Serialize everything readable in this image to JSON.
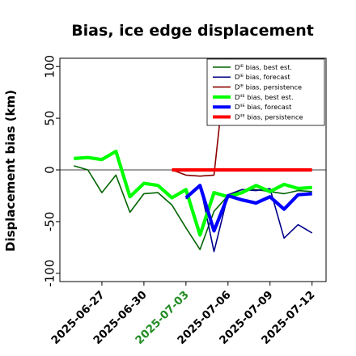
{
  "chart_data": {
    "type": "line",
    "title": "Bias, ice edge displacement",
    "ylabel": "Displacement bias (km)",
    "xlabel": "",
    "ylim": [
      -108,
      108
    ],
    "xlim": [
      "2025-06-24",
      "2025-07-13"
    ],
    "yticks": [
      -100,
      -50,
      0,
      50,
      100
    ],
    "xticks": [
      "2025-06-27",
      "2025-06-30",
      "2025-07-03",
      "2025-07-06",
      "2025-07-09",
      "2025-07-12"
    ],
    "highlighted_xtick": "2025-07-03",
    "highlight_color": "#228B22",
    "zero_line": true,
    "grid": false,
    "legend_position": "upper right",
    "series": [
      {
        "name": "Dᴵᴱ bias, best est.",
        "color": "#006400",
        "width": "thin",
        "x": [
          "2025-06-25",
          "2025-06-26",
          "2025-06-27",
          "2025-06-28",
          "2025-06-29",
          "2025-06-30",
          "2025-07-01",
          "2025-07-02",
          "2025-07-03",
          "2025-07-04",
          "2025-07-05",
          "2025-07-06",
          "2025-07-07",
          "2025-07-08",
          "2025-07-09",
          "2025-07-10",
          "2025-07-11",
          "2025-07-12"
        ],
        "y": [
          4,
          0,
          -22,
          -5,
          -41,
          -23,
          -22,
          -34,
          -56,
          -77,
          -40,
          -25,
          -19,
          -19,
          -21,
          -23,
          -20,
          -21
        ]
      },
      {
        "name": "Dᴵᴱ bias, forecast",
        "color": "#00008B",
        "width": "thin",
        "x": [
          "2025-07-03",
          "2025-07-04",
          "2025-07-05",
          "2025-07-06",
          "2025-07-07",
          "2025-07-08",
          "2025-07-09",
          "2025-07-10",
          "2025-07-11",
          "2025-07-12"
        ],
        "y": [
          -28,
          -14,
          -79,
          -24,
          -19,
          -20,
          -18,
          -66,
          -53,
          -61
        ]
      },
      {
        "name": "Dᴵᴱ bias, persistence",
        "color": "#8B0000",
        "width": "thin",
        "x": [
          "2025-07-02",
          "2025-07-03",
          "2025-07-04",
          "2025-07-05",
          "2025-07-06"
        ],
        "y": [
          0,
          -5,
          -6,
          -5,
          120
        ]
      },
      {
        "name": "Dᴵᴵᴱ bias, best est.",
        "color": "#00FF00",
        "width": "thick",
        "x": [
          "2025-06-25",
          "2025-06-26",
          "2025-06-27",
          "2025-06-28",
          "2025-06-29",
          "2025-06-30",
          "2025-07-01",
          "2025-07-02",
          "2025-07-03",
          "2025-07-04",
          "2025-07-05",
          "2025-07-06",
          "2025-07-07",
          "2025-07-08",
          "2025-07-09",
          "2025-07-10",
          "2025-07-11",
          "2025-07-12"
        ],
        "y": [
          11,
          12,
          10,
          18,
          -26,
          -13,
          -15,
          -27,
          -19,
          -63,
          -22,
          -26,
          -22,
          -15,
          -21,
          -14,
          -18,
          -17
        ]
      },
      {
        "name": "Dᴵᴵᴱ bias, forecast",
        "color": "#0000FF",
        "width": "thick",
        "x": [
          "2025-07-03",
          "2025-07-04",
          "2025-07-05",
          "2025-07-06",
          "2025-07-07",
          "2025-07-08",
          "2025-07-09",
          "2025-07-10",
          "2025-07-11",
          "2025-07-12"
        ],
        "y": [
          -27,
          -15,
          -59,
          -25,
          -29,
          -32,
          -26,
          -38,
          -24,
          -23
        ]
      },
      {
        "name": "Dᴵᴵᴱ bias, persistence",
        "color": "#FF0000",
        "width": "thick",
        "x": [
          "2025-07-02",
          "2025-07-03",
          "2025-07-04",
          "2025-07-05",
          "2025-07-06",
          "2025-07-07",
          "2025-07-08",
          "2025-07-09",
          "2025-07-10",
          "2025-07-11",
          "2025-07-12"
        ],
        "y": [
          0,
          0,
          0,
          0,
          0,
          0,
          0,
          0,
          0,
          0,
          0
        ]
      }
    ]
  }
}
